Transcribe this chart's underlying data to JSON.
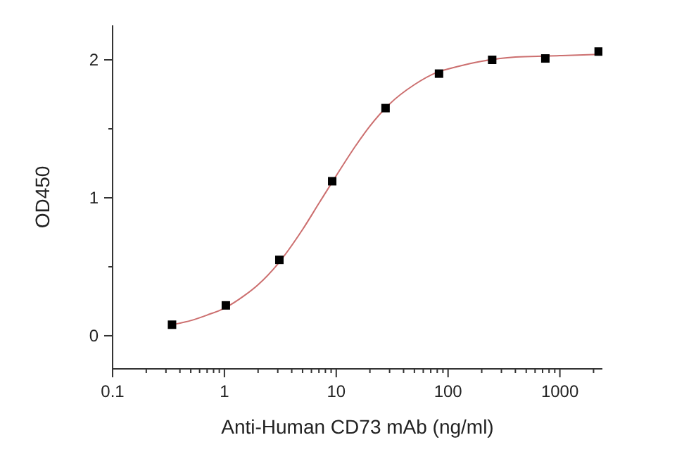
{
  "chart_data": {
    "type": "scatter",
    "xlabel": "Anti-Human CD73 mAb (ng/ml)",
    "ylabel": "OD450",
    "log": "x",
    "grid": false,
    "marker": "square",
    "xlim": [
      0.1,
      2400
    ],
    "ylim": [
      -0.24,
      2.25
    ],
    "xticks": [
      0.1,
      {
        "value": 0.2,
        "label": null
      },
      {
        "value": 0.3,
        "label": null
      },
      {
        "value": 0.4,
        "label": null
      },
      {
        "value": 0.5,
        "label": null
      },
      {
        "value": 0.6,
        "label": null
      },
      {
        "value": 0.7,
        "label": null
      },
      {
        "value": 0.8,
        "label": null
      },
      {
        "value": 0.9,
        "label": null
      },
      1,
      {
        "value": 2,
        "label": null
      },
      {
        "value": 3,
        "label": null
      },
      {
        "value": 4,
        "label": null
      },
      {
        "value": 5,
        "label": null
      },
      {
        "value": 6,
        "label": null
      },
      {
        "value": 7,
        "label": null
      },
      {
        "value": 8,
        "label": null
      },
      {
        "value": 9,
        "label": null
      },
      10,
      {
        "value": 20,
        "label": null
      },
      {
        "value": 30,
        "label": null
      },
      {
        "value": 40,
        "label": null
      },
      {
        "value": 50,
        "label": null
      },
      {
        "value": 60,
        "label": null
      },
      {
        "value": 70,
        "label": null
      },
      {
        "value": 80,
        "label": null
      },
      {
        "value": 90,
        "label": null
      },
      100,
      {
        "value": 200,
        "label": null
      },
      {
        "value": 300,
        "label": null
      },
      {
        "value": 400,
        "label": null
      },
      {
        "value": 500,
        "label": null
      },
      {
        "value": 600,
        "label": null
      },
      {
        "value": 700,
        "label": null
      },
      {
        "value": 800,
        "label": null
      },
      {
        "value": 900,
        "label": null
      },
      1000,
      {
        "value": 2000,
        "label": null
      }
    ],
    "yticks": [
      0,
      {
        "value": 0.5,
        "label": null
      },
      1,
      {
        "value": 1.5,
        "label": null
      },
      2
    ],
    "series": [
      {
        "type": "line",
        "marker": "none",
        "color": "#cc6f6f",
        "x": [
          0.34,
          0.5,
          0.7,
          1,
          1.5,
          2,
          3,
          5,
          7,
          10,
          15,
          20,
          30,
          50,
          80,
          120,
          200,
          400,
          1000,
          2222
        ],
        "values": [
          0.08,
          0.11,
          0.15,
          0.2,
          0.29,
          0.37,
          0.52,
          0.77,
          0.96,
          1.16,
          1.38,
          1.52,
          1.68,
          1.82,
          1.91,
          1.95,
          1.99,
          2.02,
          2.03,
          2.04
        ]
      },
      {
        "color": "#000000",
        "x": [
          0.34,
          1.03,
          3.1,
          9.2,
          27.6,
          83,
          248,
          741,
          2222
        ],
        "values": [
          0.08,
          0.22,
          0.55,
          1.12,
          1.65,
          1.9,
          2.0,
          2.01,
          2.06
        ]
      }
    ]
  }
}
